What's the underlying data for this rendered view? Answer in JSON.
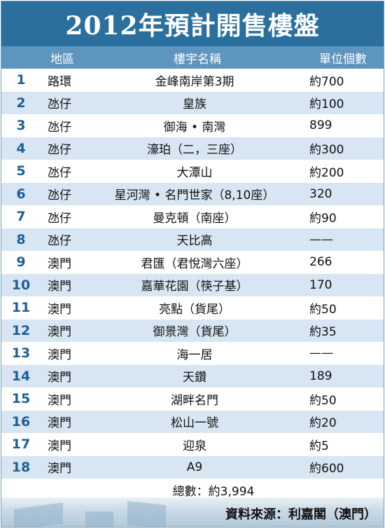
{
  "title": "2012年預計開售樓盤",
  "headers": {
    "area": "地區",
    "name": "樓宇名稱",
    "units": "單位個數"
  },
  "rows": [
    {
      "num": "1",
      "area": "路環",
      "name": "金峰南岸第3期",
      "units": "約700"
    },
    {
      "num": "2",
      "area": "氹仔",
      "name": "皇族",
      "units": "約100"
    },
    {
      "num": "3",
      "area": "氹仔",
      "name": "御海 • 南灣",
      "units": "899"
    },
    {
      "num": "4",
      "area": "氹仔",
      "name": "濠珀（二，三座）",
      "units": "約300"
    },
    {
      "num": "5",
      "area": "氹仔",
      "name": "大潭山",
      "units": "約200"
    },
    {
      "num": "6",
      "area": "氹仔",
      "name": "星河灣 • 名門世家（8,10座）",
      "units": "320"
    },
    {
      "num": "7",
      "area": "氹仔",
      "name": "曼克頓（南座）",
      "units": "約90"
    },
    {
      "num": "8",
      "area": "氹仔",
      "name": "天比高",
      "units": "——"
    },
    {
      "num": "9",
      "area": "澳門",
      "name": "君匯（君悅灣六座）",
      "units": "266"
    },
    {
      "num": "10",
      "area": "澳門",
      "name": "嘉華花園（筷子基）",
      "units": "170"
    },
    {
      "num": "11",
      "area": "澳門",
      "name": "亮點（貨尾）",
      "units": "約50"
    },
    {
      "num": "12",
      "area": "澳門",
      "name": "御景灣（貨尾）",
      "units": "約35"
    },
    {
      "num": "13",
      "area": "澳門",
      "name": "海一居",
      "units": "——"
    },
    {
      "num": "14",
      "area": "澳門",
      "name": "天鑽",
      "units": "189"
    },
    {
      "num": "15",
      "area": "澳門",
      "name": "湖畔名門",
      "units": "約50"
    },
    {
      "num": "16",
      "area": "澳門",
      "name": "松山一號",
      "units": "約20"
    },
    {
      "num": "17",
      "area": "澳門",
      "name": "迎泉",
      "units": "約5"
    },
    {
      "num": "18",
      "area": "澳門",
      "name": "A9",
      "units": "約600"
    }
  ],
  "total": "總數：約3,994",
  "source": "資料來源：利嘉閣（澳門）",
  "colors": {
    "title_bg": "#2a6f9e",
    "header_bg": "#5e95bf",
    "stripe": "#d7e6f2",
    "number": "#1f5f95"
  }
}
